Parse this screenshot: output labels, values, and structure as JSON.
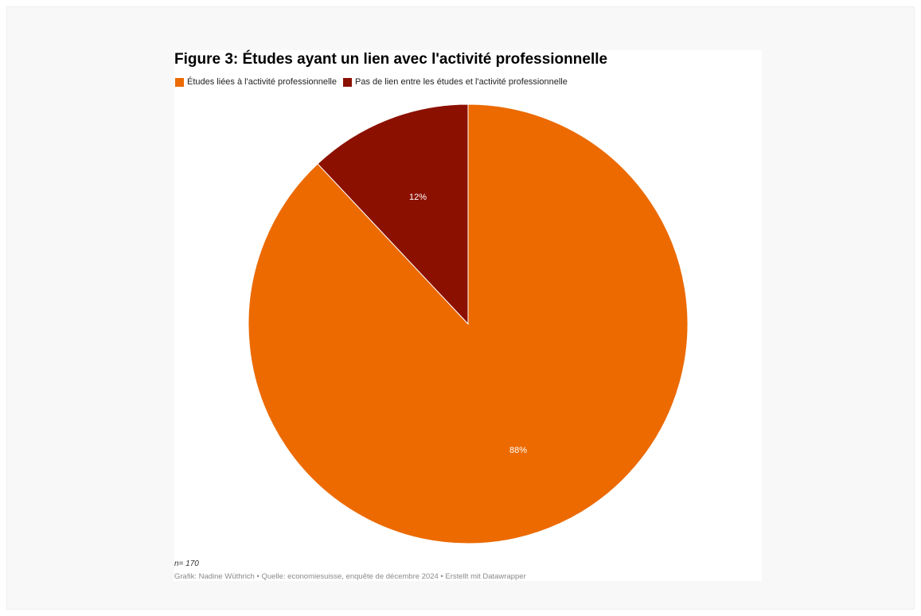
{
  "chart_data": {
    "type": "pie",
    "title": "Figure 3: Études ayant un lien avec l'activité professionnelle",
    "categories": [
      "Études liées à l'activité professionnelle",
      "Pas de lien entre les études et l'activité professionnelle"
    ],
    "values": [
      88,
      12
    ],
    "value_labels": [
      "88%",
      "12%"
    ],
    "colors": [
      "#ec6a00",
      "#8c1000"
    ],
    "legend_position": "top-left",
    "note": "n= 170",
    "source": "Grafik: Nadine Wüthrich • Quelle: economiesuisse, enquête de décembre 2024 • Erstellt mit Datawrapper"
  }
}
